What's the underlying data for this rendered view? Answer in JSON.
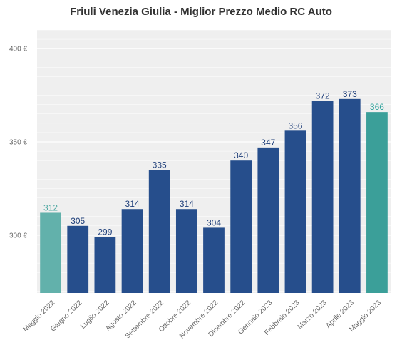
{
  "chart_data": {
    "type": "bar",
    "title": "Friuli Venezia Giulia - Miglior Prezzo Medio RC Auto",
    "xlabel": "",
    "ylabel": "",
    "categories": [
      "Maggio 2022",
      "Giugno 2022",
      "Luglio 2022",
      "Agosto 2022",
      "Settembre 2022",
      "Ottobre 2022",
      "Novembre 2022",
      "Dicembre 2022",
      "Gennaio 2023",
      "Febbraio 2023",
      "Marzo 2023",
      "Aprile 2023",
      "Maggio 2023"
    ],
    "values": [
      312,
      305,
      299,
      314,
      335,
      314,
      304,
      340,
      347,
      356,
      372,
      373,
      366
    ],
    "data_labels": [
      "312",
      "305",
      "299",
      "314",
      "335",
      "314",
      "304",
      "340",
      "347",
      "356",
      "372",
      "373",
      "366"
    ],
    "ylim": [
      269,
      410
    ],
    "yticks": [
      300,
      350,
      400
    ],
    "ytick_labels": [
      "300 €",
      "350 €",
      "400 €"
    ],
    "grid": true,
    "legend": "none",
    "colors": {
      "bar": "#264e8c",
      "first_bar": "#62b1ab",
      "last_bar": "#3b9f99",
      "label": "#1f3f7a",
      "first_label": "#4ea8a2",
      "last_label": "#2fa39c",
      "plot_bg": "#efefef",
      "grid": "#ffffff"
    }
  }
}
